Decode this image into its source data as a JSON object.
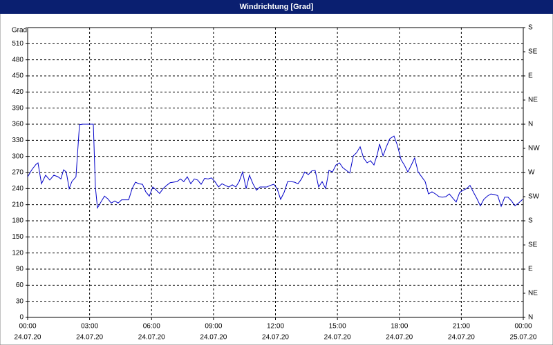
{
  "chart_data": {
    "type": "line",
    "title": "Windrichtung [Grad]",
    "y_label": "Grad",
    "xlim": [
      0,
      24
    ],
    "xticks": [
      {
        "value": 0,
        "label": "00:00",
        "date": "24.07.20"
      },
      {
        "value": 3,
        "label": "03:00",
        "date": "24.07.20"
      },
      {
        "value": 6,
        "label": "06:00",
        "date": "24.07.20"
      },
      {
        "value": 9,
        "label": "09:00",
        "date": "24.07.20"
      },
      {
        "value": 12,
        "label": "12:00",
        "date": "24.07.20"
      },
      {
        "value": 15,
        "label": "15:00",
        "date": "24.07.20"
      },
      {
        "value": 18,
        "label": "18:00",
        "date": "24.07.20"
      },
      {
        "value": 21,
        "label": "21:00",
        "date": "24.07.20"
      },
      {
        "value": 24,
        "label": "00:00",
        "date": "25.07.20"
      }
    ],
    "ylim": [
      0,
      540
    ],
    "yticks": [
      0,
      30,
      60,
      90,
      120,
      150,
      180,
      210,
      240,
      270,
      300,
      330,
      360,
      390,
      420,
      450,
      480,
      510
    ],
    "y2lim": [
      0,
      540
    ],
    "y2ticks": [
      {
        "value": 0,
        "label": "N"
      },
      {
        "value": 45,
        "label": "NE"
      },
      {
        "value": 90,
        "label": "E"
      },
      {
        "value": 135,
        "label": "SE"
      },
      {
        "value": 180,
        "label": "S"
      },
      {
        "value": 225,
        "label": "SW"
      },
      {
        "value": 270,
        "label": "W"
      },
      {
        "value": 315,
        "label": "NW"
      },
      {
        "value": 360,
        "label": "N"
      },
      {
        "value": 405,
        "label": "NE"
      },
      {
        "value": 450,
        "label": "E"
      },
      {
        "value": 495,
        "label": "SE"
      },
      {
        "value": 540,
        "label": "S"
      }
    ],
    "grid": true,
    "x": [
      0,
      0.2,
      0.4,
      0.5,
      0.67,
      0.87,
      1.07,
      1.27,
      1.47,
      1.61,
      1.74,
      1.87,
      2.01,
      2.14,
      2.34,
      2.51,
      2.68,
      2.95,
      3.18,
      3.28,
      3.38,
      3.55,
      3.72,
      3.88,
      4.05,
      4.22,
      4.38,
      4.55,
      4.72,
      4.89,
      5.06,
      5.22,
      5.39,
      5.56,
      5.72,
      5.89,
      6.06,
      6.23,
      6.39,
      6.56,
      6.73,
      6.9,
      7.06,
      7.23,
      7.4,
      7.56,
      7.73,
      7.9,
      8.07,
      8.23,
      8.4,
      8.57,
      8.74,
      8.9,
      9.07,
      9.24,
      9.41,
      9.57,
      9.74,
      9.91,
      10.08,
      10.24,
      10.41,
      10.58,
      10.74,
      10.91,
      11.08,
      11.25,
      11.41,
      11.58,
      11.75,
      11.92,
      12.08,
      12.25,
      12.42,
      12.59,
      12.75,
      12.92,
      13.09,
      13.26,
      13.42,
      13.59,
      13.76,
      13.92,
      14.09,
      14.26,
      14.43,
      14.59,
      14.76,
      14.93,
      15.1,
      15.26,
      15.43,
      15.6,
      15.77,
      15.93,
      16.1,
      16.27,
      16.44,
      16.6,
      16.77,
      16.94,
      17.04,
      17.21,
      17.37,
      17.54,
      17.74,
      17.91,
      18.08,
      18.24,
      18.41,
      18.58,
      18.74,
      18.91,
      19.08,
      19.25,
      19.41,
      19.58,
      19.75,
      19.92,
      20.08,
      20.25,
      20.42,
      20.59,
      20.75,
      20.92,
      21.09,
      21.26,
      21.42,
      21.59,
      21.76,
      21.92,
      22.09,
      22.26,
      22.43,
      22.59,
      22.76,
      22.93,
      23.1,
      23.26,
      23.43,
      23.6,
      23.77,
      23.97
    ],
    "series": [
      {
        "color": "#0000c8",
        "values": [
          262,
          275,
          285,
          288,
          249,
          265,
          256,
          265,
          262,
          258,
          275,
          271,
          240,
          253,
          262,
          359,
          360,
          360,
          360,
          243,
          204,
          215,
          226,
          221,
          213,
          217,
          213,
          219,
          219,
          219,
          240,
          252,
          249,
          248,
          234,
          226,
          243,
          237,
          231,
          240,
          246,
          251,
          252,
          253,
          258,
          253,
          262,
          249,
          258,
          256,
          248,
          259,
          258,
          260,
          253,
          243,
          249,
          246,
          243,
          247,
          243,
          253,
          271,
          240,
          265,
          249,
          237,
          243,
          243,
          243,
          246,
          248,
          240,
          220,
          233,
          253,
          253,
          252,
          249,
          258,
          271,
          266,
          273,
          274,
          243,
          253,
          240,
          274,
          271,
          284,
          288,
          279,
          274,
          269,
          301,
          307,
          318,
          297,
          288,
          292,
          284,
          305,
          323,
          301,
          318,
          333,
          338,
          320,
          294,
          284,
          271,
          284,
          297,
          271,
          262,
          253,
          230,
          234,
          230,
          225,
          224,
          225,
          230,
          222,
          215,
          233,
          237,
          240,
          246,
          233,
          221,
          208,
          220,
          226,
          230,
          229,
          227,
          207,
          224,
          224,
          217,
          208,
          213,
          220
        ]
      }
    ]
  }
}
